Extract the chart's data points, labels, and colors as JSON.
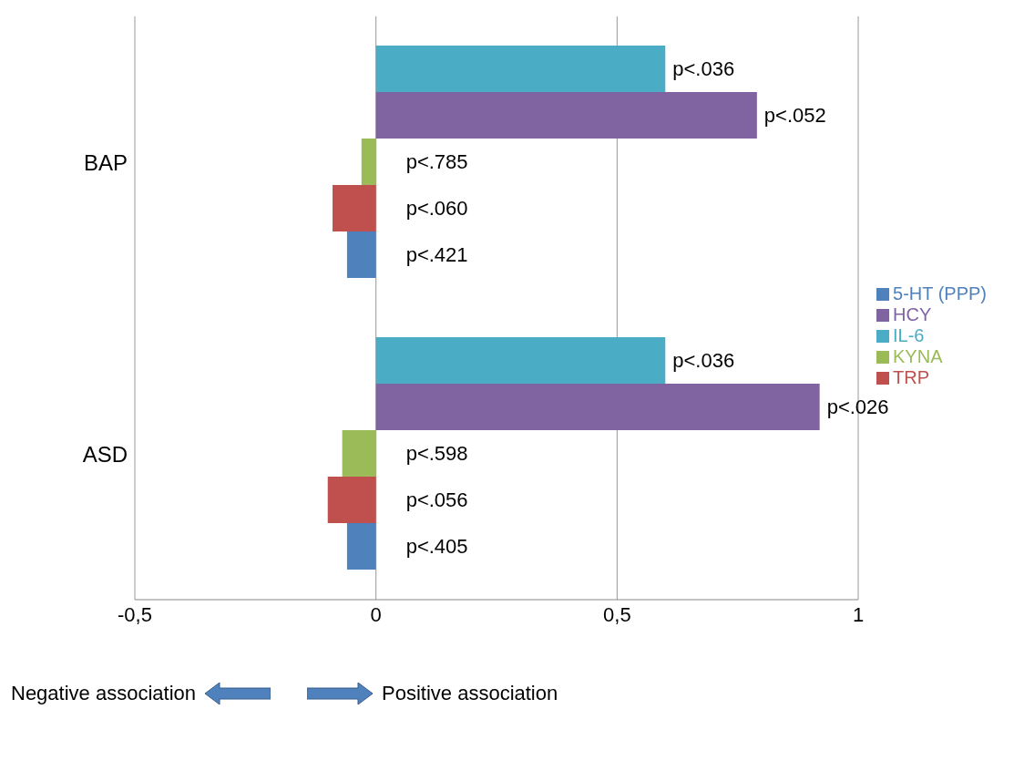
{
  "chart_data": {
    "type": "bar",
    "orientation": "horizontal",
    "categories": [
      "BAP",
      "ASD"
    ],
    "series": [
      {
        "name": "IL-6",
        "color": "#4bacc6",
        "values": [
          0.6,
          0.6
        ],
        "value_labels": [
          "p<.036",
          "p<.036"
        ]
      },
      {
        "name": "HCY",
        "color": "#8064a2",
        "values": [
          0.79,
          0.92
        ],
        "value_labels": [
          "p<.052",
          "p<.026"
        ]
      },
      {
        "name": "KYNA",
        "color": "#9bbb59",
        "values": [
          -0.03,
          -0.07
        ],
        "value_labels": [
          "p<.785",
          "p<.598"
        ]
      },
      {
        "name": "TRP",
        "color": "#c0504d",
        "values": [
          -0.09,
          -0.1
        ],
        "value_labels": [
          "p<.060",
          "p<.056"
        ]
      },
      {
        "name": "5-HT (PPP)",
        "color": "#4f81bd",
        "values": [
          -0.06,
          -0.06
        ],
        "value_labels": [
          "p<.421",
          "p<.405"
        ]
      }
    ],
    "xlim": [
      -0.5,
      1
    ],
    "xticks": [
      {
        "value": -0.5,
        "label": "-0,5"
      },
      0,
      {
        "value": 0.5,
        "label": "0,5"
      },
      1
    ],
    "grid": "x",
    "legend": "right",
    "annotations": [
      "Negative association",
      "Positive association"
    ]
  }
}
